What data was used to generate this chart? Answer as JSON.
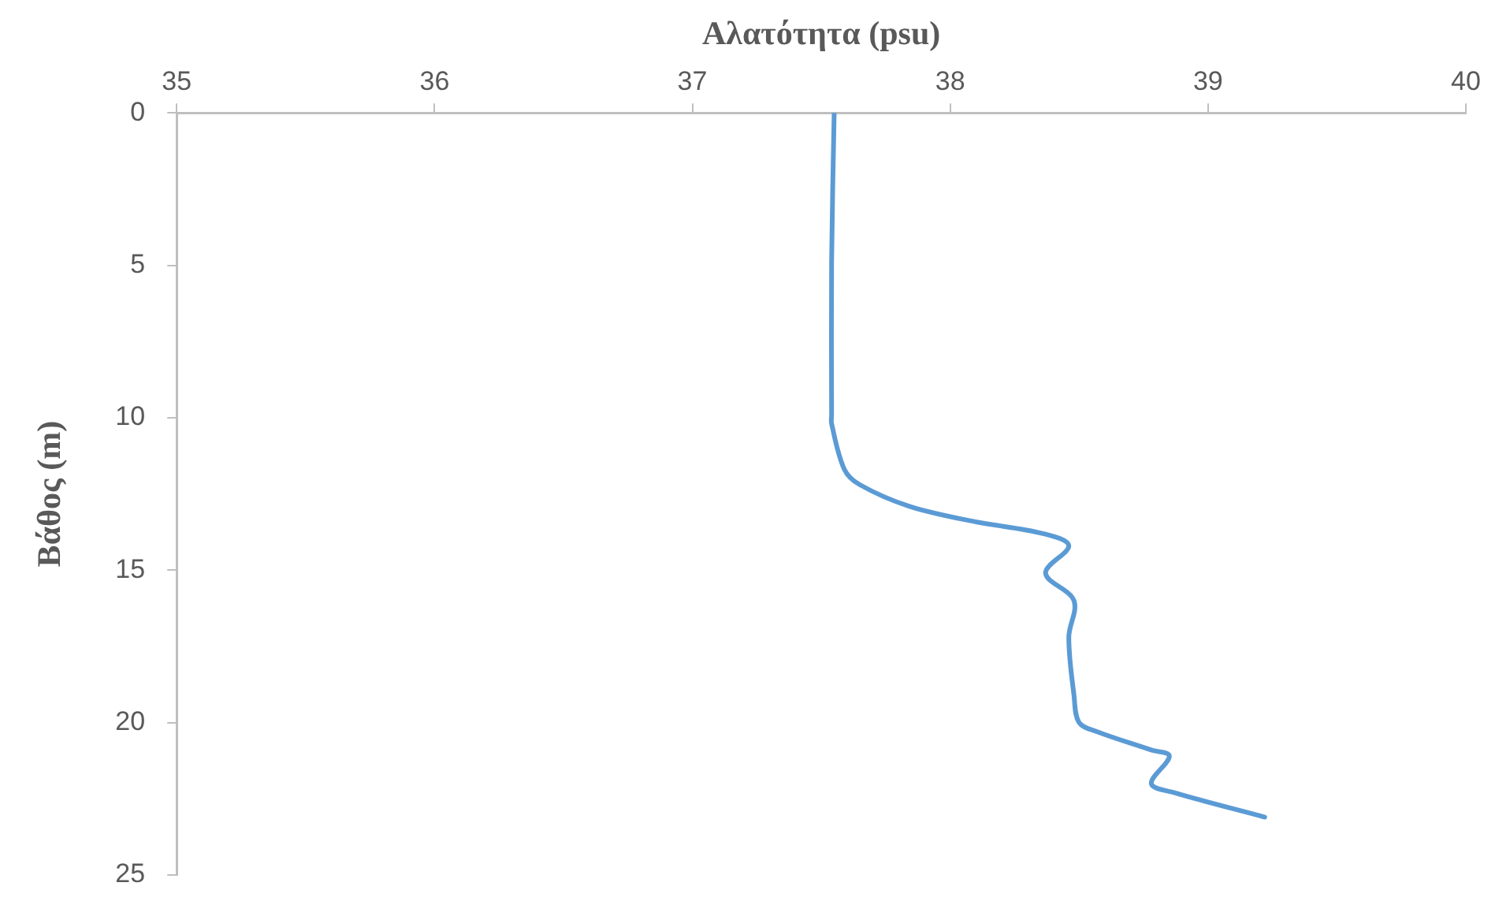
{
  "chart_data": {
    "type": "line",
    "xlabel": "Αλατότητα (psu)",
    "ylabel": "Βάθος (m)",
    "x": [
      37.55,
      37.54,
      37.54,
      37.54,
      37.59,
      37.65,
      37.84,
      38.09,
      38.36,
      38.46,
      38.37,
      38.48,
      38.46,
      38.48,
      38.5,
      38.57,
      38.78,
      38.85,
      38.78,
      38.87,
      39.22
    ],
    "series": [
      {
        "color": "#5b9bd5",
        "values": [
          0,
          4.9,
          9.9,
          10.2,
          11.7,
          12.2,
          12.9,
          13.4,
          13.8,
          14.2,
          15.1,
          16.0,
          17.2,
          19.1,
          20.0,
          20.3,
          20.9,
          21.1,
          22.0,
          22.3,
          23.1
        ]
      }
    ],
    "xlim": [
      35,
      40
    ],
    "xticks": [
      35,
      36,
      37,
      38,
      39,
      40
    ],
    "ylim": [
      25,
      0
    ],
    "yticks": [
      0,
      5,
      10,
      15,
      20,
      25
    ],
    "grid": false,
    "legend": false,
    "marker": "none",
    "line_style": "solid"
  }
}
